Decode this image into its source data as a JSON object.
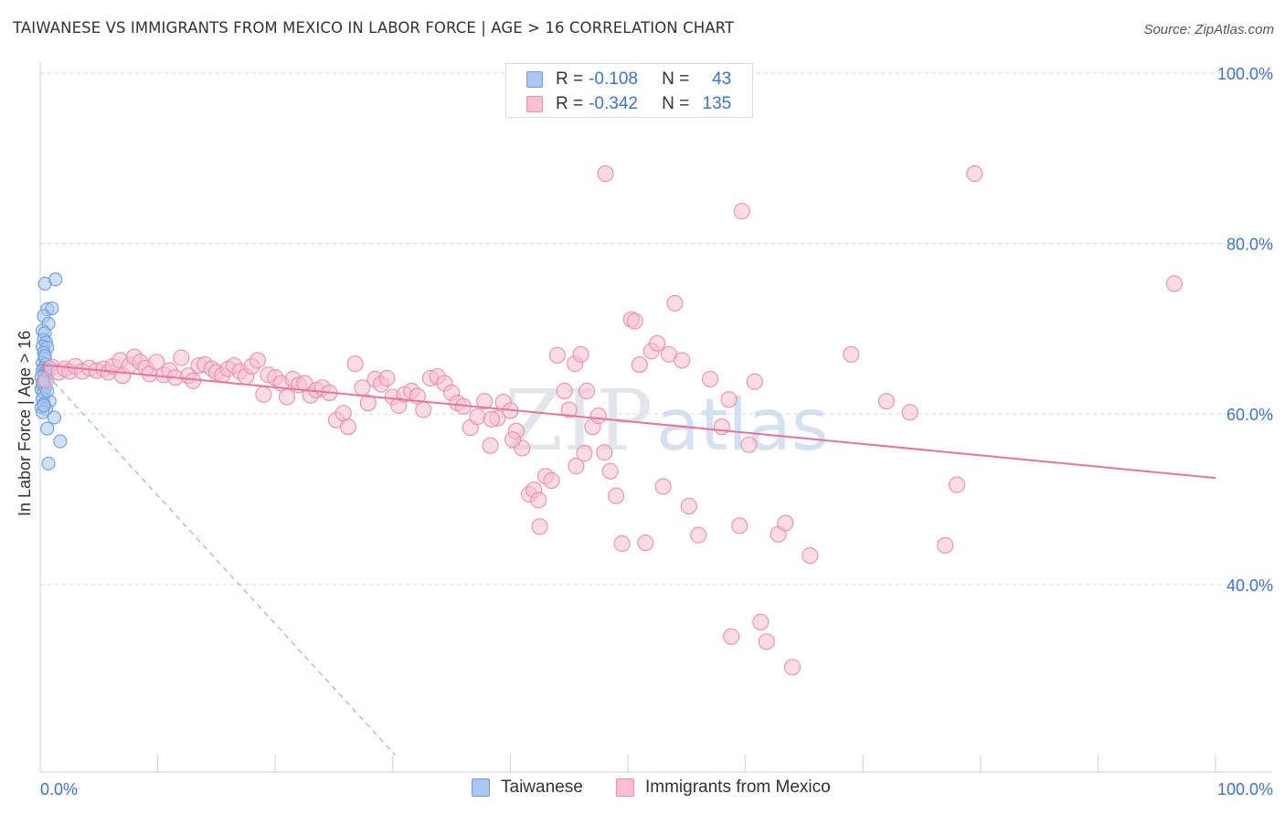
{
  "title": "TAIWANESE VS IMMIGRANTS FROM MEXICO IN LABOR FORCE | AGE > 16 CORRELATION CHART",
  "source": "Source: ZipAtlas.com",
  "watermark": {
    "zip": "ZIP",
    "atlas": "atlas"
  },
  "legend": {
    "rows": [
      {
        "r_label": "R = ",
        "r_value": "-0.108",
        "n_label": "N = ",
        "n_value": "43",
        "color": "#a9c7ef",
        "border": "#6f9ee0"
      },
      {
        "r_label": "R = ",
        "r_value": "-0.342",
        "n_label": "N = ",
        "n_value": "135",
        "color": "#f7bfcf",
        "border": "#eb8fab"
      }
    ]
  },
  "chart_data": {
    "type": "scatter",
    "xlabel": "",
    "ylabel": "In Labor Force | Age > 16",
    "xlim": [
      0,
      100
    ],
    "ylim": [
      18,
      100
    ],
    "x_tick_labels": [
      "0.0%",
      "100.0%"
    ],
    "y_ticks": [
      40,
      60,
      80,
      100
    ],
    "y_tick_labels": [
      "40.0%",
      "60.0%",
      "80.0%",
      "100.0%"
    ],
    "grid": "horizontal dashed",
    "legend_placement": "bottom",
    "series": [
      {
        "name": "Taiwanese",
        "color": "#6f9ee0",
        "fill": "#a9c7ef",
        "trend": {
          "x1": 0.0,
          "y1": 65.5,
          "x2": 30.2,
          "y2": 20.0,
          "style": "dashed"
        },
        "points": [
          [
            0.4,
            75.3
          ],
          [
            1.3,
            75.8
          ],
          [
            0.6,
            72.3
          ],
          [
            1.0,
            72.4
          ],
          [
            0.3,
            71.5
          ],
          [
            0.7,
            70.6
          ],
          [
            0.2,
            69.8
          ],
          [
            0.4,
            69.5
          ],
          [
            0.3,
            68.7
          ],
          [
            0.5,
            68.4
          ],
          [
            0.2,
            67.9
          ],
          [
            0.6,
            67.8
          ],
          [
            0.3,
            67.2
          ],
          [
            0.4,
            66.5
          ],
          [
            0.2,
            66.0
          ],
          [
            0.5,
            65.8
          ],
          [
            0.3,
            65.4
          ],
          [
            0.2,
            65.1
          ],
          [
            0.4,
            64.9
          ],
          [
            0.6,
            64.7
          ],
          [
            0.3,
            64.5
          ],
          [
            0.1,
            64.3
          ],
          [
            0.5,
            64.1
          ],
          [
            0.3,
            63.8
          ],
          [
            0.2,
            63.4
          ],
          [
            0.4,
            63.1
          ],
          [
            0.1,
            62.9
          ],
          [
            0.3,
            62.5
          ],
          [
            0.2,
            61.8
          ],
          [
            0.8,
            61.5
          ],
          [
            0.3,
            61.2
          ],
          [
            0.1,
            60.8
          ],
          [
            0.5,
            60.6
          ],
          [
            0.2,
            60.2
          ],
          [
            1.2,
            59.6
          ],
          [
            0.6,
            58.3
          ],
          [
            1.7,
            56.8
          ],
          [
            0.7,
            54.2
          ],
          [
            0.4,
            66.8
          ],
          [
            0.8,
            65.5
          ],
          [
            0.2,
            63.7
          ],
          [
            0.6,
            62.7
          ],
          [
            0.3,
            61.0
          ]
        ]
      },
      {
        "name": "Immigrants from Mexico",
        "color": "#eb8fab",
        "fill": "#f7bfcf",
        "trend": {
          "x1": 0.0,
          "y1": 65.8,
          "x2": 100.0,
          "y2": 52.5,
          "style": "solid"
        },
        "points": [
          [
            0.5,
            64.0
          ],
          [
            1.0,
            65.5
          ],
          [
            1.6,
            64.9
          ],
          [
            2.1,
            65.3
          ],
          [
            2.5,
            65.0
          ],
          [
            3.0,
            65.6
          ],
          [
            3.6,
            65.0
          ],
          [
            4.2,
            65.4
          ],
          [
            4.8,
            65.1
          ],
          [
            5.4,
            65.3
          ],
          [
            5.8,
            64.9
          ],
          [
            6.2,
            65.6
          ],
          [
            6.8,
            66.3
          ],
          [
            7.0,
            64.5
          ],
          [
            7.6,
            65.7
          ],
          [
            8.0,
            66.7
          ],
          [
            8.5,
            66.1
          ],
          [
            9.0,
            65.4
          ],
          [
            9.3,
            64.7
          ],
          [
            9.9,
            66.1
          ],
          [
            10.5,
            64.6
          ],
          [
            11.0,
            65.1
          ],
          [
            11.5,
            64.3
          ],
          [
            12.0,
            66.6
          ],
          [
            12.6,
            64.5
          ],
          [
            13.0,
            63.9
          ],
          [
            13.5,
            65.7
          ],
          [
            14.0,
            65.8
          ],
          [
            14.6,
            65.3
          ],
          [
            15.0,
            64.9
          ],
          [
            15.5,
            64.6
          ],
          [
            16.0,
            65.3
          ],
          [
            16.5,
            65.7
          ],
          [
            17.0,
            65.0
          ],
          [
            17.5,
            64.4
          ],
          [
            18.0,
            65.6
          ],
          [
            18.5,
            66.3
          ],
          [
            19.0,
            62.3
          ],
          [
            19.4,
            64.6
          ],
          [
            20.0,
            64.3
          ],
          [
            20.5,
            63.6
          ],
          [
            21.0,
            62.0
          ],
          [
            21.5,
            64.1
          ],
          [
            22.0,
            63.4
          ],
          [
            22.5,
            63.6
          ],
          [
            23.0,
            62.2
          ],
          [
            23.5,
            62.8
          ],
          [
            24.0,
            63.1
          ],
          [
            24.6,
            62.5
          ],
          [
            25.2,
            59.3
          ],
          [
            25.8,
            60.1
          ],
          [
            26.2,
            58.5
          ],
          [
            26.8,
            65.9
          ],
          [
            27.4,
            63.1
          ],
          [
            27.9,
            61.3
          ],
          [
            28.5,
            64.1
          ],
          [
            29.0,
            63.5
          ],
          [
            29.5,
            64.2
          ],
          [
            30.0,
            62.0
          ],
          [
            30.5,
            61.0
          ],
          [
            31.0,
            62.3
          ],
          [
            31.6,
            62.7
          ],
          [
            32.1,
            62.1
          ],
          [
            32.6,
            60.5
          ],
          [
            33.2,
            64.2
          ],
          [
            33.8,
            64.4
          ],
          [
            34.4,
            63.6
          ],
          [
            35.0,
            62.5
          ],
          [
            35.5,
            61.3
          ],
          [
            36.0,
            60.9
          ],
          [
            36.6,
            58.4
          ],
          [
            37.2,
            59.7
          ],
          [
            37.8,
            61.5
          ],
          [
            38.3,
            56.3
          ],
          [
            38.9,
            59.5
          ],
          [
            39.4,
            61.4
          ],
          [
            40.0,
            60.4
          ],
          [
            40.5,
            58.0
          ],
          [
            41.0,
            56.0
          ],
          [
            41.6,
            50.6
          ],
          [
            42.0,
            51.1
          ],
          [
            42.5,
            46.8
          ],
          [
            43.0,
            52.7
          ],
          [
            43.5,
            52.2
          ],
          [
            44.0,
            66.9
          ],
          [
            44.6,
            62.7
          ],
          [
            45.0,
            60.5
          ],
          [
            45.5,
            65.9
          ],
          [
            46.0,
            67.0
          ],
          [
            46.5,
            62.7
          ],
          [
            47.0,
            58.5
          ],
          [
            47.5,
            59.8
          ],
          [
            48.0,
            55.5
          ],
          [
            48.5,
            53.3
          ],
          [
            49.0,
            50.4
          ],
          [
            49.5,
            44.8
          ],
          [
            50.3,
            71.1
          ],
          [
            51.0,
            65.8
          ],
          [
            51.5,
            44.9
          ],
          [
            52.0,
            67.4
          ],
          [
            52.5,
            68.3
          ],
          [
            53.0,
            51.5
          ],
          [
            53.5,
            67.0
          ],
          [
            54.0,
            73.0
          ],
          [
            54.6,
            66.3
          ],
          [
            55.2,
            49.2
          ],
          [
            56.0,
            45.8
          ],
          [
            57.0,
            64.1
          ],
          [
            58.0,
            58.5
          ],
          [
            58.6,
            61.7
          ],
          [
            59.5,
            46.9
          ],
          [
            60.3,
            56.4
          ],
          [
            60.8,
            63.8
          ],
          [
            61.3,
            35.6
          ],
          [
            61.8,
            33.3
          ],
          [
            62.8,
            45.9
          ],
          [
            63.4,
            47.2
          ],
          [
            64.0,
            30.3
          ],
          [
            65.5,
            43.4
          ],
          [
            69.0,
            67.0
          ],
          [
            72.0,
            61.5
          ],
          [
            74.0,
            60.2
          ],
          [
            77.0,
            44.6
          ],
          [
            78.0,
            51.7
          ],
          [
            79.5,
            88.2
          ],
          [
            96.5,
            75.3
          ],
          [
            48.1,
            88.2
          ],
          [
            59.7,
            83.8
          ],
          [
            50.6,
            70.9
          ],
          [
            58.8,
            33.9
          ],
          [
            46.3,
            55.4
          ],
          [
            40.2,
            57.0
          ],
          [
            38.4,
            59.4
          ],
          [
            42.4,
            49.9
          ],
          [
            45.6,
            53.9
          ]
        ]
      }
    ]
  },
  "bottom_legend": [
    {
      "label": "Taiwanese",
      "color": "#a9c7ef",
      "border": "#6f9ee0"
    },
    {
      "label": "Immigrants from Mexico",
      "color": "#f7bfcf",
      "border": "#eb8fab"
    }
  ]
}
